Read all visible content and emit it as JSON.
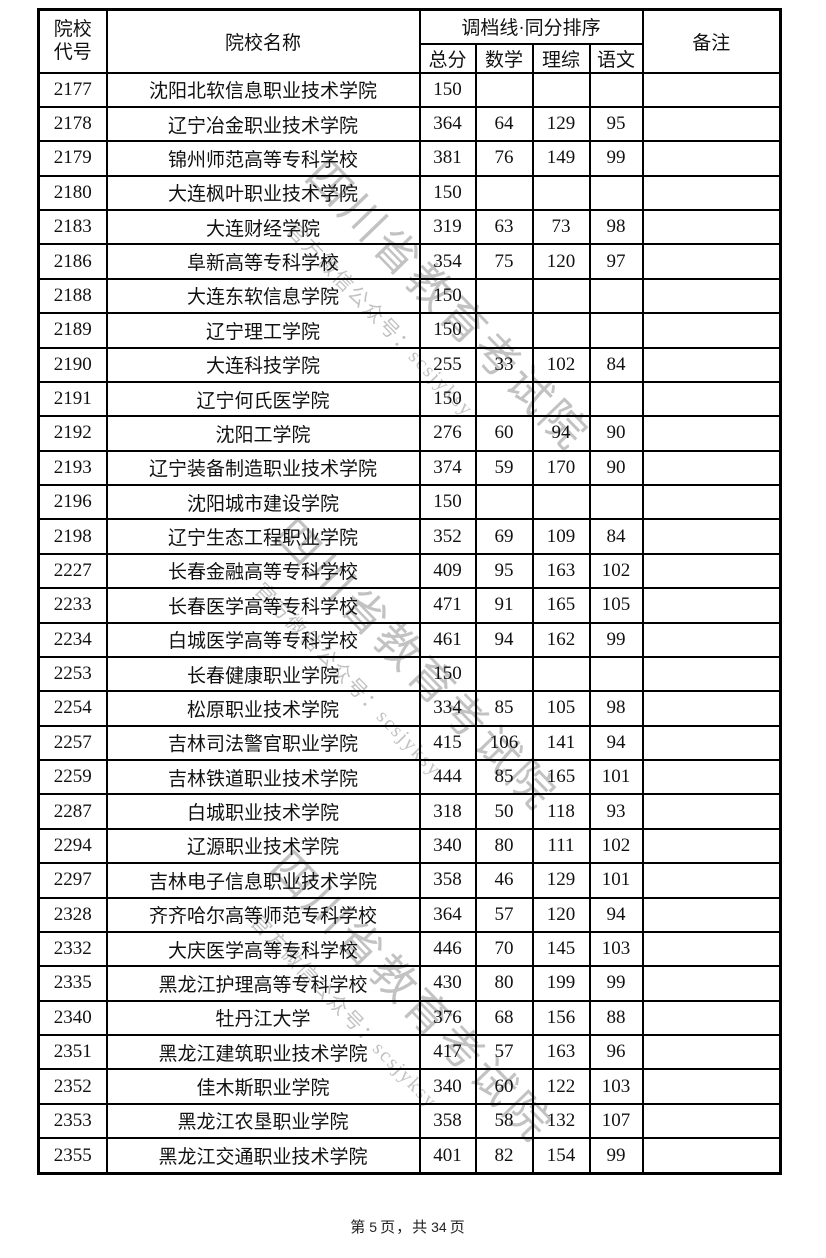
{
  "document": {
    "watermark": {
      "line1": "四川省教育考试院",
      "line2": "官方微信公众号：scsjyksy",
      "color": "#c2c2c2"
    },
    "footer": {
      "prefix": "第",
      "page_number": "5",
      "middle": "页，共",
      "total_pages": "34",
      "suffix": "页"
    }
  },
  "table": {
    "headers": {
      "code": "院校\n代号",
      "name": "院校名称",
      "score_group": "调档线·同分排序",
      "sub": [
        "总分",
        "数学",
        "理综",
        "语文"
      ],
      "remark": "备注"
    },
    "rows": [
      {
        "code": "2177",
        "name": "沈阳北软信息职业技术学院",
        "total": "150",
        "math": "",
        "science": "",
        "chinese": "",
        "remark": ""
      },
      {
        "code": "2178",
        "name": "辽宁冶金职业技术学院",
        "total": "364",
        "math": "64",
        "science": "129",
        "chinese": "95",
        "remark": ""
      },
      {
        "code": "2179",
        "name": "锦州师范高等专科学校",
        "total": "381",
        "math": "76",
        "science": "149",
        "chinese": "99",
        "remark": ""
      },
      {
        "code": "2180",
        "name": "大连枫叶职业技术学院",
        "total": "150",
        "math": "",
        "science": "",
        "chinese": "",
        "remark": ""
      },
      {
        "code": "2183",
        "name": "大连财经学院",
        "total": "319",
        "math": "63",
        "science": "73",
        "chinese": "98",
        "remark": ""
      },
      {
        "code": "2186",
        "name": "阜新高等专科学校",
        "total": "354",
        "math": "75",
        "science": "120",
        "chinese": "97",
        "remark": ""
      },
      {
        "code": "2188",
        "name": "大连东软信息学院",
        "total": "150",
        "math": "",
        "science": "",
        "chinese": "",
        "remark": ""
      },
      {
        "code": "2189",
        "name": "辽宁理工学院",
        "total": "150",
        "math": "",
        "science": "",
        "chinese": "",
        "remark": ""
      },
      {
        "code": "2190",
        "name": "大连科技学院",
        "total": "255",
        "math": "33",
        "science": "102",
        "chinese": "84",
        "remark": ""
      },
      {
        "code": "2191",
        "name": "辽宁何氏医学院",
        "total": "150",
        "math": "",
        "science": "",
        "chinese": "",
        "remark": ""
      },
      {
        "code": "2192",
        "name": "沈阳工学院",
        "total": "276",
        "math": "60",
        "science": "94",
        "chinese": "90",
        "remark": ""
      },
      {
        "code": "2193",
        "name": "辽宁装备制造职业技术学院",
        "total": "374",
        "math": "59",
        "science": "170",
        "chinese": "90",
        "remark": ""
      },
      {
        "code": "2196",
        "name": "沈阳城市建设学院",
        "total": "150",
        "math": "",
        "science": "",
        "chinese": "",
        "remark": ""
      },
      {
        "code": "2198",
        "name": "辽宁生态工程职业学院",
        "total": "352",
        "math": "69",
        "science": "109",
        "chinese": "84",
        "remark": ""
      },
      {
        "code": "2227",
        "name": "长春金融高等专科学校",
        "total": "409",
        "math": "95",
        "science": "163",
        "chinese": "102",
        "remark": ""
      },
      {
        "code": "2233",
        "name": "长春医学高等专科学校",
        "total": "471",
        "math": "91",
        "science": "165",
        "chinese": "105",
        "remark": ""
      },
      {
        "code": "2234",
        "name": "白城医学高等专科学校",
        "total": "461",
        "math": "94",
        "science": "162",
        "chinese": "99",
        "remark": ""
      },
      {
        "code": "2253",
        "name": "长春健康职业学院",
        "total": "150",
        "math": "",
        "science": "",
        "chinese": "",
        "remark": ""
      },
      {
        "code": "2254",
        "name": "松原职业技术学院",
        "total": "334",
        "math": "85",
        "science": "105",
        "chinese": "98",
        "remark": ""
      },
      {
        "code": "2257",
        "name": "吉林司法警官职业学院",
        "total": "415",
        "math": "106",
        "science": "141",
        "chinese": "94",
        "remark": ""
      },
      {
        "code": "2259",
        "name": "吉林铁道职业技术学院",
        "total": "444",
        "math": "85",
        "science": "165",
        "chinese": "101",
        "remark": ""
      },
      {
        "code": "2287",
        "name": "白城职业技术学院",
        "total": "318",
        "math": "50",
        "science": "118",
        "chinese": "93",
        "remark": ""
      },
      {
        "code": "2294",
        "name": "辽源职业技术学院",
        "total": "340",
        "math": "80",
        "science": "111",
        "chinese": "102",
        "remark": ""
      },
      {
        "code": "2297",
        "name": "吉林电子信息职业技术学院",
        "total": "358",
        "math": "46",
        "science": "129",
        "chinese": "101",
        "remark": ""
      },
      {
        "code": "2328",
        "name": "齐齐哈尔高等师范专科学校",
        "total": "364",
        "math": "57",
        "science": "120",
        "chinese": "94",
        "remark": ""
      },
      {
        "code": "2332",
        "name": "大庆医学高等专科学校",
        "total": "446",
        "math": "70",
        "science": "145",
        "chinese": "103",
        "remark": ""
      },
      {
        "code": "2335",
        "name": "黑龙江护理高等专科学校",
        "total": "430",
        "math": "80",
        "science": "199",
        "chinese": "99",
        "remark": ""
      },
      {
        "code": "2340",
        "name": "牡丹江大学",
        "total": "376",
        "math": "68",
        "science": "156",
        "chinese": "88",
        "remark": ""
      },
      {
        "code": "2351",
        "name": "黑龙江建筑职业技术学院",
        "total": "417",
        "math": "57",
        "science": "163",
        "chinese": "96",
        "remark": ""
      },
      {
        "code": "2352",
        "name": "佳木斯职业学院",
        "total": "340",
        "math": "60",
        "science": "122",
        "chinese": "103",
        "remark": ""
      },
      {
        "code": "2353",
        "name": "黑龙江农垦职业学院",
        "total": "358",
        "math": "58",
        "science": "132",
        "chinese": "107",
        "remark": ""
      },
      {
        "code": "2355",
        "name": "黑龙江交通职业技术学院",
        "total": "401",
        "math": "82",
        "science": "154",
        "chinese": "99",
        "remark": ""
      }
    ]
  }
}
